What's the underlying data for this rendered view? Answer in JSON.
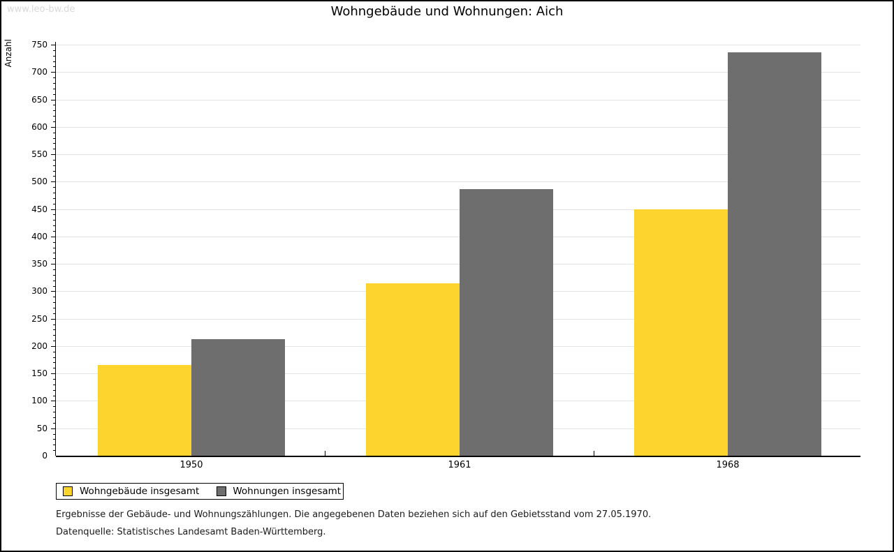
{
  "watermark": "www.leo-bw.de",
  "title": "Wohngebäude und Wohnungen: Aich",
  "chart_data": {
    "type": "bar",
    "title": "Wohngebäude und Wohnungen: Aich",
    "categories": [
      "1950",
      "1961",
      "1968"
    ],
    "series": [
      {
        "name": "Wohngebäude insgesamt",
        "color": "#fcd42d",
        "values": [
          166,
          315,
          450
        ]
      },
      {
        "name": "Wohnungen insgesamt",
        "color": "#6e6e6e",
        "values": [
          213,
          487,
          736
        ]
      }
    ],
    "xlabel": "",
    "ylabel": "Anzahl",
    "ylim": [
      0,
      750
    ],
    "ytick_step": 50,
    "minor_tick_step": 10,
    "grid": true,
    "gridline_color": "#e3e3e3",
    "legend_position": "bottom-left"
  },
  "footer": {
    "line1": "Ergebnisse der Gebäude- und Wohnungszählungen. Die angegebenen Daten beziehen sich auf den Gebietsstand vom 27.05.1970.",
    "line2": "Datenquelle: Statistisches Landesamt Baden-Württemberg."
  }
}
